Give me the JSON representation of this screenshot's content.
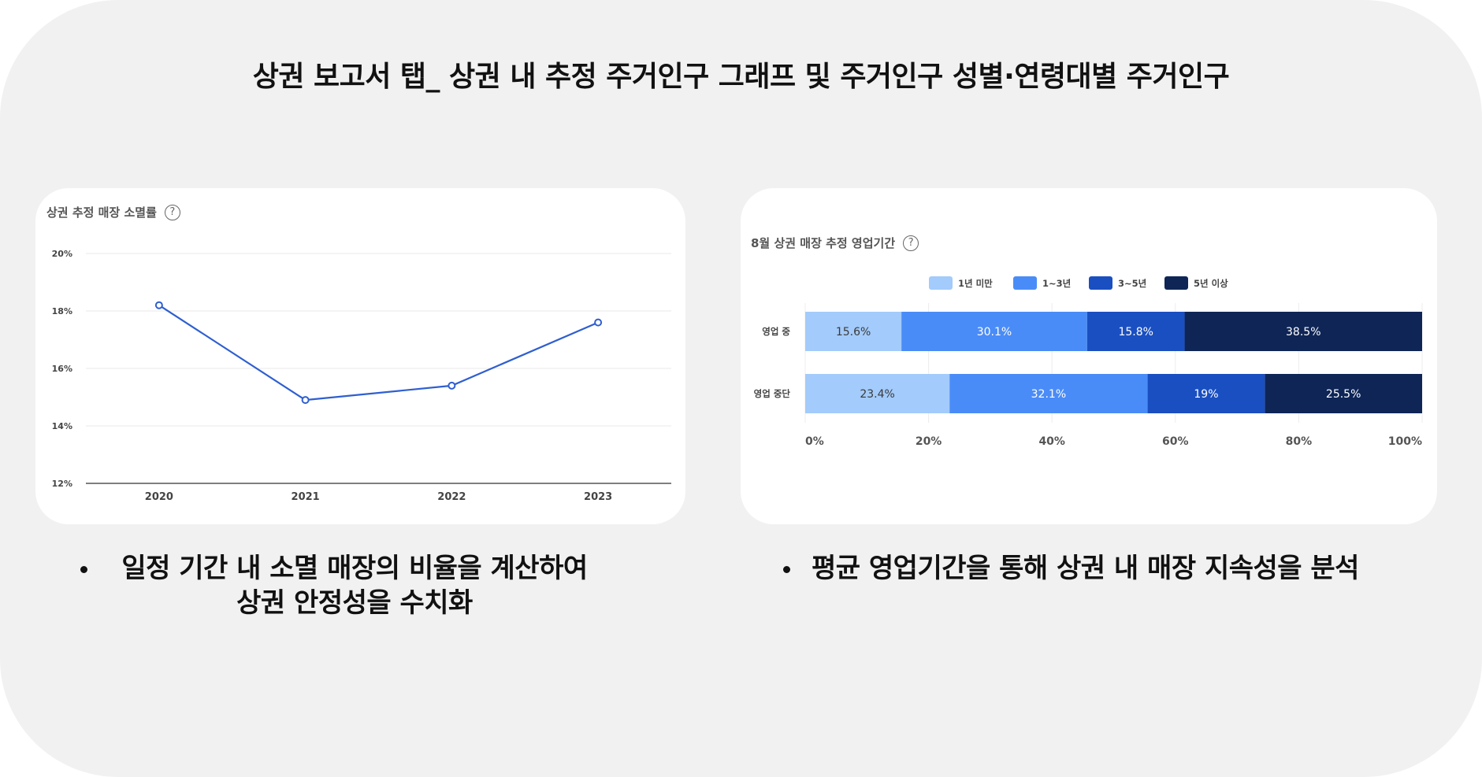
{
  "page_title": "상권 보고서 탭_ 상권 내 추정 주거인구 그래프 및 주거인구 성별·연령대별 주거인구",
  "charts": {
    "left": {
      "title": "상권 추정 매장 소멸률",
      "help_glyph": "?"
    },
    "right": {
      "title": "8월 상권 매장 추정 영업기간",
      "help_glyph": "?"
    }
  },
  "chart_data": [
    {
      "type": "line",
      "title": "상권 추정 매장 소멸률",
      "categories": [
        "2020",
        "2021",
        "2022",
        "2023"
      ],
      "values": [
        18.2,
        14.9,
        15.4,
        17.6
      ],
      "y_ticks": [
        "20%",
        "18%",
        "16%",
        "14%",
        "12%"
      ],
      "ylim": [
        12,
        20
      ],
      "grid": true,
      "line_color": "#2f5fcf"
    },
    {
      "type": "bar",
      "orientation": "horizontal",
      "stacked": true,
      "title": "8월 상권 매장 추정 영업기간",
      "categories": [
        "영업 중",
        "영업 중단"
      ],
      "series": [
        {
          "name": "1년 미만",
          "values": [
            15.6,
            23.4
          ],
          "labels": [
            "15.6%",
            "23.4%"
          ],
          "color": "#a3cbfb"
        },
        {
          "name": "1~3년",
          "values": [
            30.1,
            32.1
          ],
          "labels": [
            "30.1%",
            "32.1%"
          ],
          "color": "#4a8cf7"
        },
        {
          "name": "3~5년",
          "values": [
            15.8,
            19
          ],
          "labels": [
            "15.8%",
            "19%"
          ],
          "color": "#1a4fc1"
        },
        {
          "name": "5년 이상",
          "values": [
            38.5,
            25.5
          ],
          "labels": [
            "38.5%",
            "25.5%"
          ],
          "color": "#0e2556"
        }
      ],
      "x_ticks": [
        "0%",
        "20%",
        "40%",
        "60%",
        "80%",
        "100%"
      ],
      "xlim": [
        0,
        100
      ],
      "legend_position": "top-center",
      "grid": true
    }
  ],
  "bullets": {
    "left_line1": "일정 기간 내 소멸 매장의 비율을 계산하여",
    "left_line2": "상권 안정성을 수치화",
    "right_line1": "평균 영업기간을 통해 상권 내 매장 지속성을 분석"
  }
}
